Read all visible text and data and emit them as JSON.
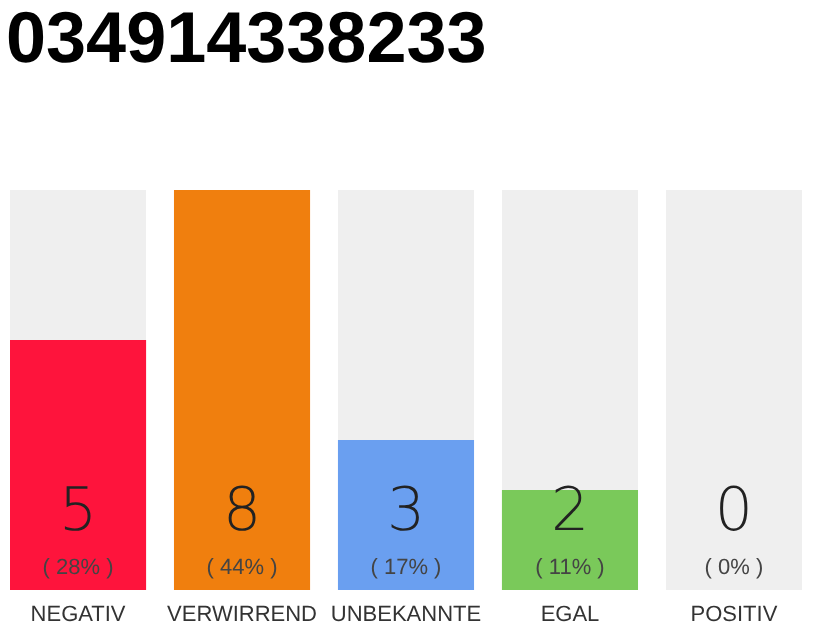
{
  "chart_data": {
    "type": "bar",
    "title": "034914338233",
    "categories": [
      "NEGATIV",
      "VERWIRREND",
      "UNBEKANNTE",
      "EGAL",
      "POSITIV"
    ],
    "values": [
      5,
      8,
      3,
      2,
      0
    ],
    "colors": [
      "#fe143c",
      "#f07f0e",
      "#6a9ff0",
      "#7ac95a",
      "#2eaa4a"
    ],
    "data_labels": true,
    "annotations": [
      "( 28% )",
      "( 44% )",
      "( 17% )",
      "( 11% )",
      "( 0% )"
    ],
    "grid": false,
    "legend": false
  }
}
